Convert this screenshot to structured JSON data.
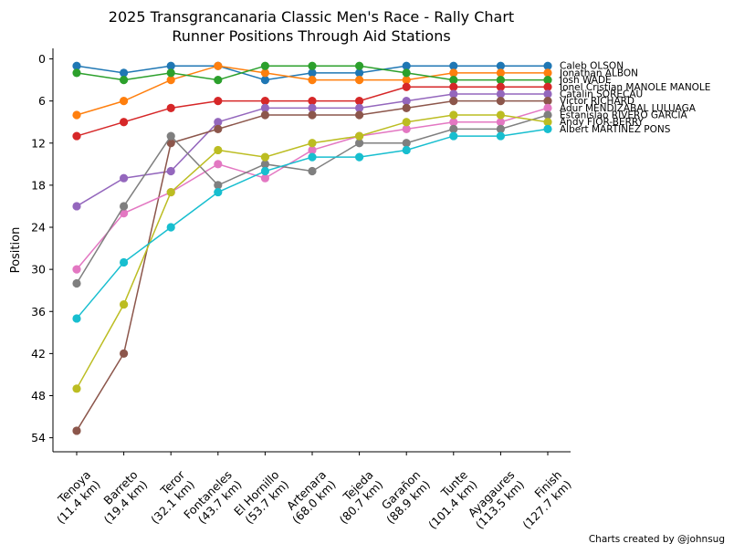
{
  "chart_data": {
    "type": "line",
    "title_lines": [
      "2025 Transgrancanaria Classic Men's Race - Rally Chart",
      "Runner Positions Through Aid Stations"
    ],
    "xlabel": "",
    "ylabel": "Position",
    "y_inverted": true,
    "ylim": [
      56,
      -1.5
    ],
    "yticks": [
      0,
      6,
      12,
      18,
      24,
      30,
      36,
      42,
      48,
      54
    ],
    "grid": false,
    "legend_placement": "right-end-labels",
    "categories": [
      [
        "Tenoya",
        "(11.4 km)"
      ],
      [
        "Barreto",
        "(19.4 km)"
      ],
      [
        "Teror",
        "(32.1 km)"
      ],
      [
        "Fontaneles",
        "(43.7 km)"
      ],
      [
        "El Hornillo",
        "(53.7 km)"
      ],
      [
        "Artenara",
        "(68.0 km)"
      ],
      [
        "Tejeda",
        "(80.7 km)"
      ],
      [
        "Garañon",
        "(88.9 km)"
      ],
      [
        "Tunte",
        "(101.4 km)"
      ],
      [
        "Ayagaures",
        "(113.5 km)"
      ],
      [
        "Finish",
        "(127.7 km)"
      ]
    ],
    "series": [
      {
        "name": "Caleb OLSON",
        "color": "#1f77b4",
        "label_y": 1,
        "values": [
          1,
          2,
          1,
          1,
          3,
          2,
          2,
          1,
          1,
          1,
          1
        ]
      },
      {
        "name": "Jonathan ALBON",
        "color": "#ff7f0e",
        "label_y": 2,
        "values": [
          8,
          6,
          3,
          1,
          2,
          3,
          3,
          3,
          2,
          2,
          2
        ]
      },
      {
        "name": "Josh WADE",
        "color": "#2ca02c",
        "label_y": 3,
        "values": [
          2,
          3,
          2,
          3,
          1,
          1,
          1,
          2,
          3,
          3,
          3
        ]
      },
      {
        "name": "Ionel Cristian MANOLE MANOLE",
        "color": "#d62728",
        "label_y": 4,
        "values": [
          11,
          9,
          7,
          6,
          6,
          6,
          6,
          4,
          4,
          4,
          4
        ]
      },
      {
        "name": "Catalin SORECAU",
        "color": "#9467bd",
        "label_y": 5,
        "values": [
          21,
          17,
          16,
          9,
          7,
          7,
          7,
          6,
          5,
          5,
          5
        ]
      },
      {
        "name": "Victor RICHARD",
        "color": "#8c564b",
        "label_y": 6,
        "values": [
          53,
          42,
          12,
          10,
          8,
          8,
          8,
          7,
          6,
          6,
          6
        ]
      },
      {
        "name": "Adur MENDIZABAL LULUAGA",
        "color": "#e377c2",
        "label_y": 7,
        "values": [
          30,
          22,
          19,
          15,
          17,
          13,
          11,
          10,
          9,
          9,
          7
        ]
      },
      {
        "name": "Estanislao RIVERO GARCIA",
        "color": "#7f7f7f",
        "label_y": 8,
        "values": [
          32,
          21,
          11,
          18,
          15,
          16,
          12,
          12,
          10,
          10,
          8
        ]
      },
      {
        "name": "Andy FIOR-BERRY",
        "color": "#bcbd22",
        "label_y": 9,
        "values": [
          47,
          35,
          19,
          13,
          14,
          12,
          11,
          9,
          8,
          8,
          9
        ]
      },
      {
        "name": "Albert MARTINEZ PONS",
        "color": "#17becf",
        "label_y": 10,
        "values": [
          37,
          29,
          24,
          19,
          16,
          14,
          14,
          13,
          11,
          11,
          10
        ]
      }
    ]
  },
  "credit": "Charts created by @johnsug"
}
